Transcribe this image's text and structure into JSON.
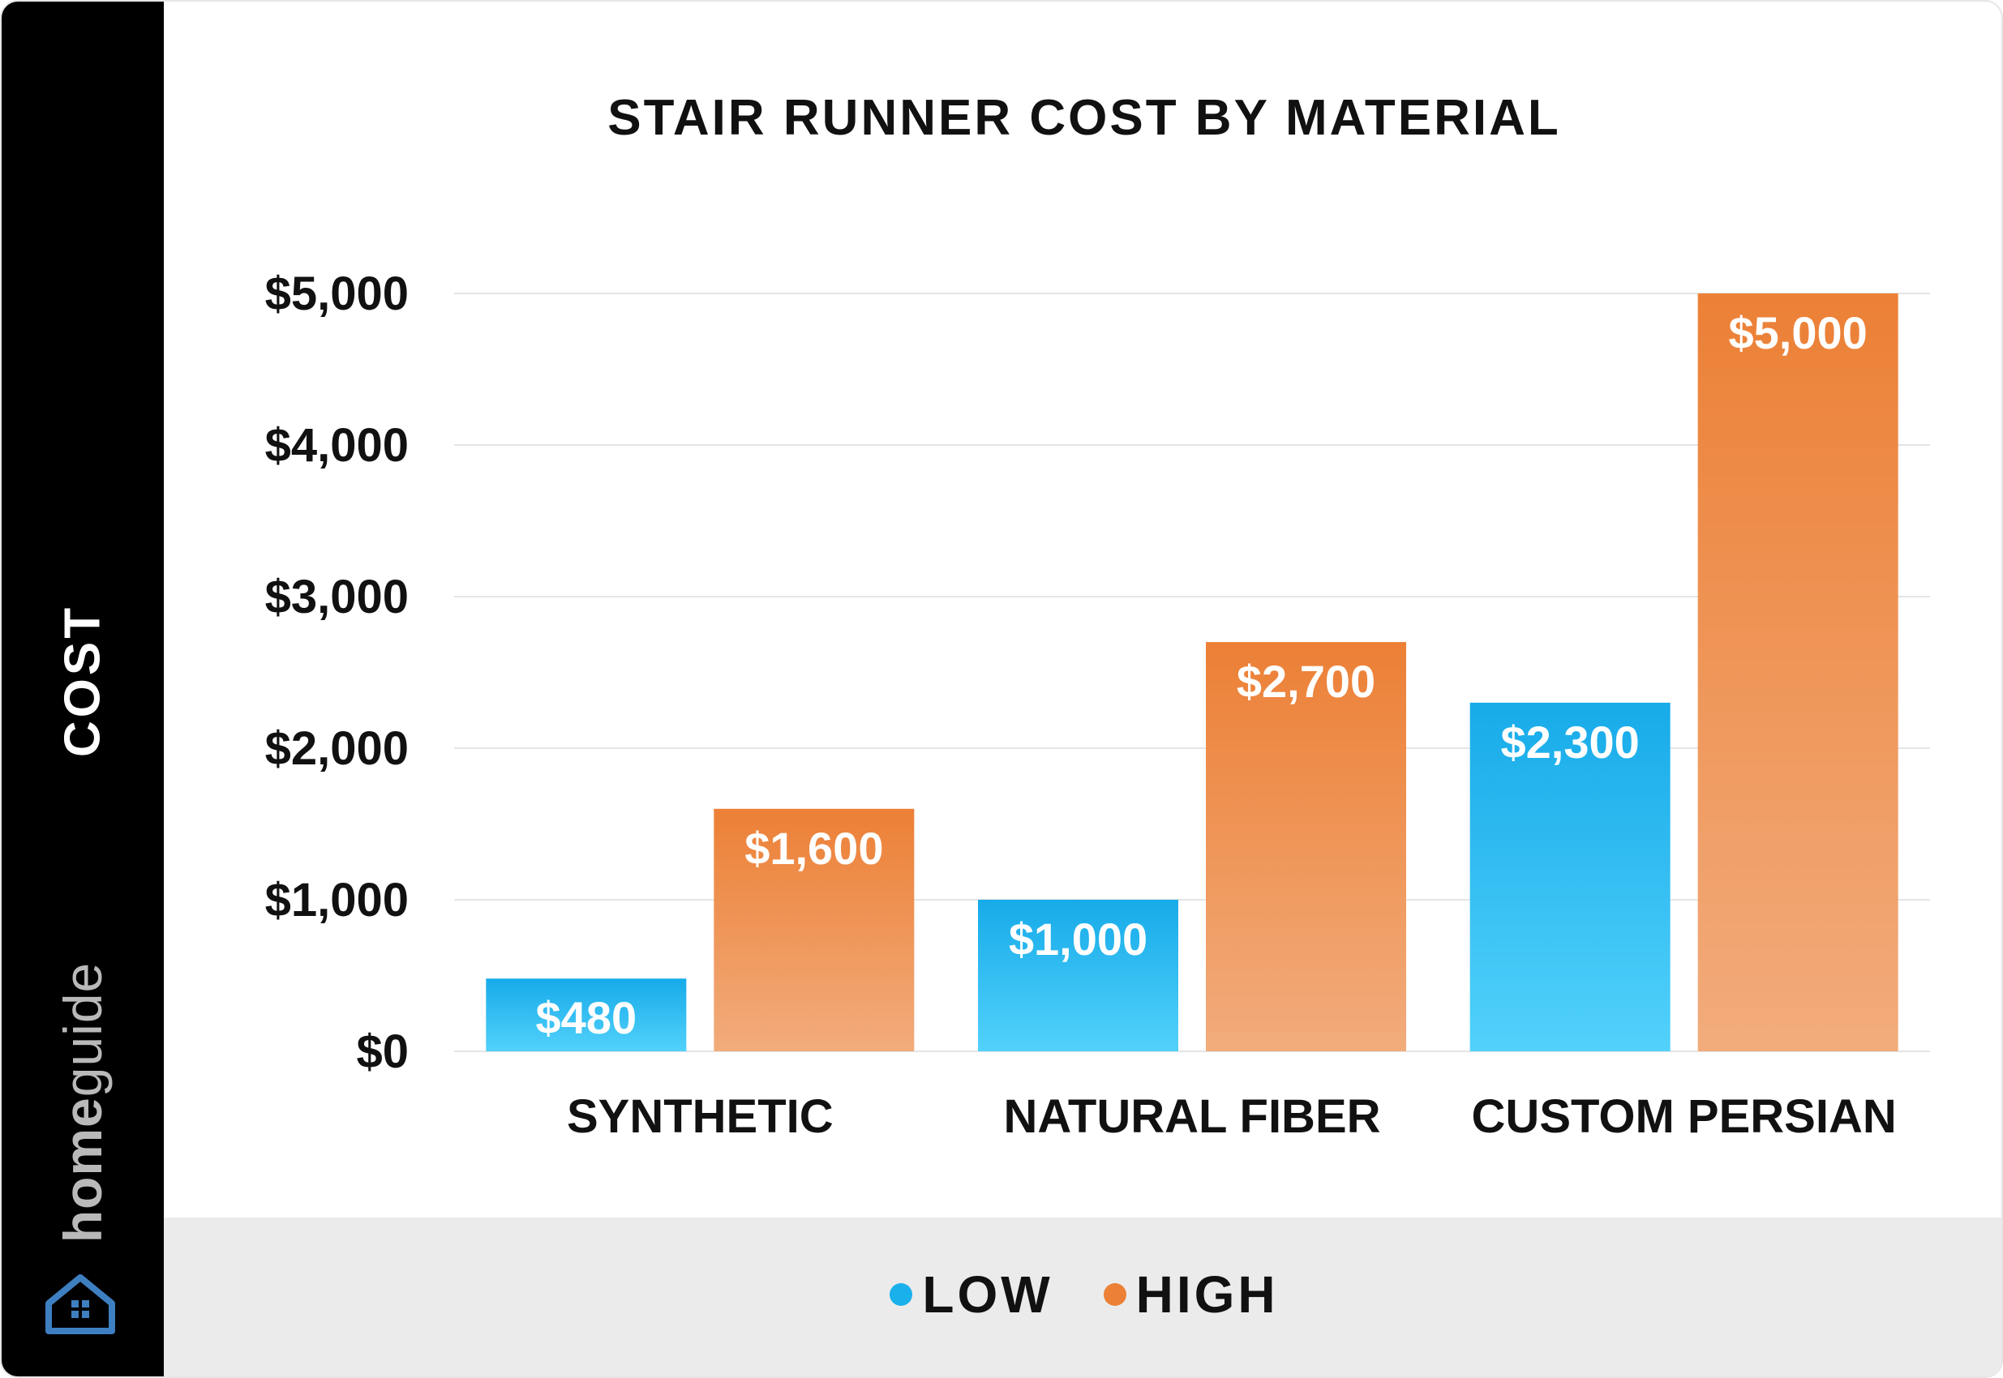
{
  "sidebar": {
    "axis_label": "COST",
    "brand_home": "home",
    "brand_guide": "guide",
    "logo_icon": "house-icon"
  },
  "chart_data": {
    "type": "bar",
    "title": "STAIR RUNNER COST BY MATERIAL",
    "xlabel": "",
    "ylabel": "COST",
    "categories": [
      "SYNTHETIC",
      "NATURAL FIBER",
      "CUSTOM PERSIAN"
    ],
    "series": [
      {
        "name": "LOW",
        "values": [
          480,
          1000,
          2300
        ],
        "labels": [
          "$480",
          "$1,000",
          "$2,300"
        ],
        "color": "#1ab0ec"
      },
      {
        "name": "HIGH",
        "values": [
          1600,
          2700,
          5000
        ],
        "labels": [
          "$1,600",
          "$2,700",
          "$5,000"
        ],
        "color": "#ec8036"
      }
    ],
    "ylim": [
      0,
      5000
    ],
    "yticks": [
      0,
      1000,
      2000,
      3000,
      4000,
      5000
    ],
    "ytick_labels": [
      "$0",
      "$1,000",
      "$2,000",
      "$3,000",
      "$4,000",
      "$5,000"
    ],
    "grid": true,
    "legend_position": "bottom"
  },
  "colors": {
    "low": "#1ab0ec",
    "high": "#ec8036",
    "sidebar": "#000000",
    "footer": "#ebebeb"
  }
}
